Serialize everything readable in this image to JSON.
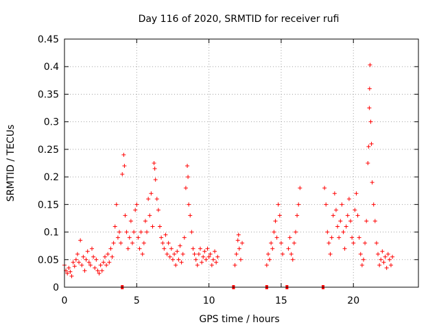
{
  "chart_data": {
    "type": "scatter",
    "title": "Day 116 of 2020, SRMTID for receiver rufi",
    "xlabel": "GPS time / hours",
    "ylabel": "SRMTID / TECUs",
    "xlim": [
      0,
      24.5
    ],
    "ylim": [
      0,
      0.45
    ],
    "xticks": [
      0,
      5,
      10,
      15,
      20
    ],
    "xtick_labels": [
      "0",
      "5",
      "10",
      "15",
      "20"
    ],
    "yticks": [
      0,
      0.05,
      0.1,
      0.15,
      0.2,
      0.25,
      0.3,
      0.35,
      0.4,
      0.45
    ],
    "ytick_labels": [
      "0",
      "0.05",
      "0.1",
      "0.15",
      "0.2",
      "0.25",
      "0.3",
      "0.35",
      "0.4",
      "0.45"
    ],
    "grid": true,
    "marker": "plus",
    "color": "#ff0000",
    "gap_markers_x": [
      4.0,
      11.7,
      14.0,
      15.4,
      17.9
    ],
    "series": [
      {
        "name": "SRMTID",
        "points": [
          [
            0.0,
            0.04
          ],
          [
            0.1,
            0.03
          ],
          [
            0.2,
            0.025
          ],
          [
            0.3,
            0.035
          ],
          [
            0.4,
            0.028
          ],
          [
            0.5,
            0.02
          ],
          [
            0.6,
            0.045
          ],
          [
            0.7,
            0.038
          ],
          [
            0.8,
            0.05
          ],
          [
            0.9,
            0.06
          ],
          [
            1.0,
            0.045
          ],
          [
            1.1,
            0.085
          ],
          [
            1.2,
            0.04
          ],
          [
            1.3,
            0.055
          ],
          [
            1.4,
            0.03
          ],
          [
            1.5,
            0.05
          ],
          [
            1.6,
            0.065
          ],
          [
            1.7,
            0.045
          ],
          [
            1.8,
            0.04
          ],
          [
            1.9,
            0.07
          ],
          [
            2.0,
            0.055
          ],
          [
            2.1,
            0.035
          ],
          [
            2.2,
            0.05
          ],
          [
            2.3,
            0.03
          ],
          [
            2.4,
            0.025
          ],
          [
            2.5,
            0.04
          ],
          [
            2.6,
            0.03
          ],
          [
            2.7,
            0.045
          ],
          [
            2.8,
            0.055
          ],
          [
            2.9,
            0.04
          ],
          [
            3.0,
            0.06
          ],
          [
            3.1,
            0.045
          ],
          [
            3.2,
            0.07
          ],
          [
            3.3,
            0.055
          ],
          [
            3.4,
            0.08
          ],
          [
            3.5,
            0.11
          ],
          [
            3.6,
            0.15
          ],
          [
            3.7,
            0.09
          ],
          [
            3.8,
            0.1
          ],
          [
            3.9,
            0.08
          ],
          [
            4.0,
            0.205
          ],
          [
            4.1,
            0.24
          ],
          [
            4.15,
            0.22
          ],
          [
            4.2,
            0.13
          ],
          [
            4.3,
            0.1
          ],
          [
            4.4,
            0.07
          ],
          [
            4.5,
            0.09
          ],
          [
            4.6,
            0.12
          ],
          [
            4.7,
            0.08
          ],
          [
            4.8,
            0.1
          ],
          [
            4.9,
            0.14
          ],
          [
            5.0,
            0.15
          ],
          [
            5.1,
            0.09
          ],
          [
            5.2,
            0.07
          ],
          [
            5.3,
            0.1
          ],
          [
            5.4,
            0.06
          ],
          [
            5.5,
            0.08
          ],
          [
            5.6,
            0.12
          ],
          [
            5.7,
            0.1
          ],
          [
            5.8,
            0.16
          ],
          [
            5.9,
            0.13
          ],
          [
            6.0,
            0.17
          ],
          [
            6.1,
            0.11
          ],
          [
            6.2,
            0.225
          ],
          [
            6.25,
            0.215
          ],
          [
            6.3,
            0.195
          ],
          [
            6.4,
            0.16
          ],
          [
            6.5,
            0.14
          ],
          [
            6.6,
            0.11
          ],
          [
            6.7,
            0.09
          ],
          [
            6.8,
            0.08
          ],
          [
            6.9,
            0.07
          ],
          [
            7.0,
            0.095
          ],
          [
            7.1,
            0.06
          ],
          [
            7.2,
            0.08
          ],
          [
            7.3,
            0.055
          ],
          [
            7.4,
            0.07
          ],
          [
            7.5,
            0.05
          ],
          [
            7.6,
            0.06
          ],
          [
            7.7,
            0.04
          ],
          [
            7.8,
            0.065
          ],
          [
            7.9,
            0.05
          ],
          [
            8.0,
            0.075
          ],
          [
            8.1,
            0.045
          ],
          [
            8.2,
            0.06
          ],
          [
            8.3,
            0.09
          ],
          [
            8.4,
            0.18
          ],
          [
            8.5,
            0.22
          ],
          [
            8.55,
            0.2
          ],
          [
            8.6,
            0.15
          ],
          [
            8.7,
            0.13
          ],
          [
            8.8,
            0.1
          ],
          [
            8.9,
            0.07
          ],
          [
            9.0,
            0.06
          ],
          [
            9.1,
            0.05
          ],
          [
            9.2,
            0.04
          ],
          [
            9.3,
            0.06
          ],
          [
            9.4,
            0.07
          ],
          [
            9.5,
            0.045
          ],
          [
            9.6,
            0.055
          ],
          [
            9.7,
            0.065
          ],
          [
            9.8,
            0.05
          ],
          [
            9.9,
            0.07
          ],
          [
            10.0,
            0.055
          ],
          [
            10.1,
            0.06
          ],
          [
            10.2,
            0.04
          ],
          [
            10.3,
            0.05
          ],
          [
            10.4,
            0.065
          ],
          [
            10.5,
            0.045
          ],
          [
            10.6,
            0.055
          ],
          [
            11.8,
            0.04
          ],
          [
            11.9,
            0.06
          ],
          [
            12.0,
            0.085
          ],
          [
            12.05,
            0.095
          ],
          [
            12.1,
            0.07
          ],
          [
            12.2,
            0.05
          ],
          [
            12.3,
            0.08
          ],
          [
            14.0,
            0.04
          ],
          [
            14.1,
            0.06
          ],
          [
            14.2,
            0.05
          ],
          [
            14.3,
            0.08
          ],
          [
            14.4,
            0.07
          ],
          [
            14.5,
            0.1
          ],
          [
            14.6,
            0.12
          ],
          [
            14.7,
            0.09
          ],
          [
            14.8,
            0.15
          ],
          [
            14.9,
            0.13
          ],
          [
            15.0,
            0.08
          ],
          [
            15.1,
            0.06
          ],
          [
            15.5,
            0.07
          ],
          [
            15.6,
            0.09
          ],
          [
            15.7,
            0.06
          ],
          [
            15.8,
            0.05
          ],
          [
            15.9,
            0.08
          ],
          [
            16.0,
            0.1
          ],
          [
            16.1,
            0.13
          ],
          [
            16.2,
            0.15
          ],
          [
            16.3,
            0.18
          ],
          [
            18.0,
            0.18
          ],
          [
            18.1,
            0.15
          ],
          [
            18.2,
            0.1
          ],
          [
            18.3,
            0.08
          ],
          [
            18.4,
            0.06
          ],
          [
            18.5,
            0.09
          ],
          [
            18.6,
            0.13
          ],
          [
            18.7,
            0.17
          ],
          [
            18.8,
            0.14
          ],
          [
            18.9,
            0.11
          ],
          [
            19.0,
            0.09
          ],
          [
            19.1,
            0.12
          ],
          [
            19.2,
            0.15
          ],
          [
            19.3,
            0.1
          ],
          [
            19.4,
            0.07
          ],
          [
            19.5,
            0.11
          ],
          [
            19.6,
            0.13
          ],
          [
            19.7,
            0.16
          ],
          [
            19.8,
            0.12
          ],
          [
            19.9,
            0.09
          ],
          [
            20.0,
            0.08
          ],
          [
            20.1,
            0.14
          ],
          [
            20.2,
            0.17
          ],
          [
            20.3,
            0.13
          ],
          [
            20.4,
            0.09
          ],
          [
            20.5,
            0.06
          ],
          [
            20.6,
            0.04
          ],
          [
            20.7,
            0.05
          ],
          [
            20.8,
            0.08
          ],
          [
            20.9,
            0.12
          ],
          [
            21.0,
            0.225
          ],
          [
            21.05,
            0.255
          ],
          [
            21.1,
            0.325
          ],
          [
            21.12,
            0.36
          ],
          [
            21.15,
            0.403
          ],
          [
            21.2,
            0.3
          ],
          [
            21.25,
            0.26
          ],
          [
            21.3,
            0.19
          ],
          [
            21.4,
            0.15
          ],
          [
            21.5,
            0.12
          ],
          [
            21.6,
            0.08
          ],
          [
            21.7,
            0.06
          ],
          [
            21.8,
            0.04
          ],
          [
            21.9,
            0.05
          ],
          [
            22.0,
            0.065
          ],
          [
            22.1,
            0.045
          ],
          [
            22.2,
            0.055
          ],
          [
            22.3,
            0.035
          ],
          [
            22.4,
            0.06
          ],
          [
            22.5,
            0.05
          ],
          [
            22.6,
            0.04
          ],
          [
            22.7,
            0.055
          ]
        ]
      }
    ]
  }
}
